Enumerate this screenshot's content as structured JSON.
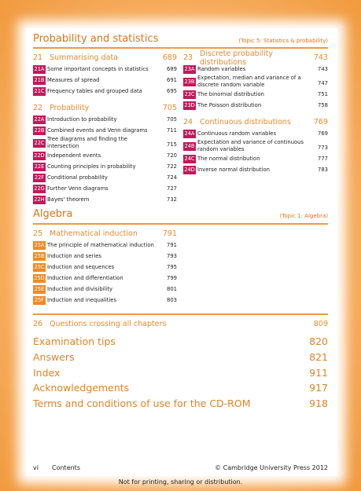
{
  "sections": [
    {
      "title": "Probability and statistics",
      "topic": "(Topic 5: Statistics & probability)",
      "columns": [
        [
          {
            "number": "21",
            "title": "Summarising data",
            "page": 689,
            "items": [
              {
                "code": "21A",
                "title": "Some important concepts in statistics",
                "page": 689
              },
              {
                "code": "21B",
                "title": "Measures of spread",
                "page": 691
              },
              {
                "code": "21C",
                "title": "Frequency tables and grouped data",
                "page": 695
              }
            ]
          },
          {
            "number": "22",
            "title": "Probability",
            "page": 705,
            "items": [
              {
                "code": "22A",
                "title": "Introduction to probability",
                "page": 705
              },
              {
                "code": "22B",
                "title": "Combined events and Venn diagrams",
                "page": 711
              },
              {
                "code": "22C",
                "title": "Tree diagrams and finding the intersection",
                "page": 715
              },
              {
                "code": "22D",
                "title": "Independent events",
                "page": 720
              },
              {
                "code": "22E",
                "title": "Counting principles in probability",
                "page": 722
              },
              {
                "code": "22F",
                "title": "Conditional probability",
                "page": 724
              },
              {
                "code": "22G",
                "title": "Further Venn diagrams",
                "page": 727
              },
              {
                "code": "22H",
                "title": "Bayes' theorem",
                "page": 732
              }
            ]
          }
        ],
        [
          {
            "number": "23",
            "title": "Discrete probability distributions",
            "page": 743,
            "items": [
              {
                "code": "23A",
                "title": "Random variables",
                "page": 743
              },
              {
                "code": "23B",
                "title": "Expectation, median and variance of a discrete random variable",
                "page": 747
              },
              {
                "code": "23C",
                "title": "The binomial distribution",
                "page": 751
              },
              {
                "code": "23D",
                "title": "The Poisson distribution",
                "page": 758
              }
            ]
          },
          {
            "number": "24",
            "title": "Continuous distributions",
            "page": 769,
            "items": [
              {
                "code": "24A",
                "title": "Continuous random variables",
                "page": 769
              },
              {
                "code": "24B",
                "title": "Expectation and variance of continuous random variables",
                "page": 773
              },
              {
                "code": "24C",
                "title": "The normal distribution",
                "page": 777
              },
              {
                "code": "24D",
                "title": "Inverse normal distribution",
                "page": 783
              }
            ]
          }
        ]
      ]
    },
    {
      "title": "Algebra",
      "topic": "(Topic 1: Algebra)",
      "columns": [
        [
          {
            "number": "25",
            "title": "Mathematical induction",
            "page": 791,
            "items": [
              {
                "code": "25A",
                "title": "The principle of mathematical induction",
                "page": 791
              },
              {
                "code": "25B",
                "title": "Induction and series",
                "page": 793
              },
              {
                "code": "25C",
                "title": "Induction and sequences",
                "page": 795
              },
              {
                "code": "25D",
                "title": "Induction and differentiation",
                "page": 799
              },
              {
                "code": "25E",
                "title": "Induction and divisibility",
                "page": 801
              },
              {
                "code": "25F",
                "title": "Induction and inequalities",
                "page": 803
              }
            ]
          }
        ]
      ]
    }
  ],
  "extra_chapter": {
    "number": "26",
    "title": "Questions crossing all chapters",
    "page": 809
  },
  "back_matter": [
    {
      "title": "Examination tips",
      "page": 820
    },
    {
      "title": "Answers",
      "page": 821
    },
    {
      "title": "Index",
      "page": 911
    },
    {
      "title": "Acknowledgements",
      "page": 917
    },
    {
      "title": "Terms and conditions of use for the CD-ROM",
      "page": 918
    }
  ],
  "footer": {
    "page": "vi",
    "label": "Contents",
    "copyright": "© Cambridge University Press 2012"
  },
  "notice": "Not for printing, sharing or distribution."
}
